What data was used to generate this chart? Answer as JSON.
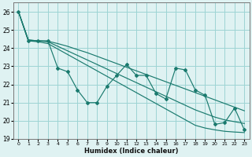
{
  "xlabel": "Humidex (Indice chaleur)",
  "x": [
    0,
    1,
    2,
    3,
    4,
    5,
    6,
    7,
    8,
    9,
    10,
    11,
    12,
    13,
    14,
    15,
    16,
    17,
    18,
    19,
    20,
    21,
    22,
    23
  ],
  "y_main": [
    26.0,
    24.4,
    24.4,
    24.4,
    22.9,
    22.7,
    21.7,
    21.0,
    21.0,
    21.9,
    22.5,
    23.1,
    22.5,
    22.5,
    21.5,
    21.2,
    22.9,
    22.8,
    21.7,
    21.4,
    19.8,
    19.9,
    20.7,
    19.5
  ],
  "y_upper": [
    26.0,
    24.45,
    24.4,
    24.38,
    24.25,
    24.1,
    23.92,
    23.75,
    23.55,
    23.35,
    23.15,
    22.95,
    22.75,
    22.55,
    22.35,
    22.15,
    21.95,
    21.75,
    21.55,
    21.35,
    21.15,
    20.95,
    20.75,
    20.55
  ],
  "y_mid": [
    26.0,
    24.45,
    24.4,
    24.35,
    24.1,
    23.85,
    23.6,
    23.35,
    23.1,
    22.85,
    22.6,
    22.35,
    22.1,
    21.85,
    21.6,
    21.35,
    21.1,
    20.85,
    20.6,
    20.4,
    20.2,
    20.05,
    19.95,
    19.85
  ],
  "y_lower": [
    26.0,
    24.4,
    24.35,
    24.25,
    23.95,
    23.65,
    23.35,
    23.05,
    22.75,
    22.45,
    22.15,
    21.85,
    21.55,
    21.25,
    20.95,
    20.65,
    20.35,
    20.05,
    19.75,
    19.6,
    19.5,
    19.42,
    19.38,
    19.35
  ],
  "color": "#1a7a6e",
  "bg_color": "#dff2f2",
  "grid_color": "#9dd4d4",
  "ylim": [
    19,
    26.5
  ],
  "xlim": [
    -0.5,
    23.5
  ],
  "yticks": [
    19,
    20,
    21,
    22,
    23,
    24,
    25,
    26
  ],
  "xticks": [
    0,
    1,
    2,
    3,
    4,
    5,
    6,
    7,
    8,
    9,
    10,
    11,
    12,
    13,
    14,
    15,
    16,
    17,
    18,
    19,
    20,
    21,
    22,
    23
  ]
}
